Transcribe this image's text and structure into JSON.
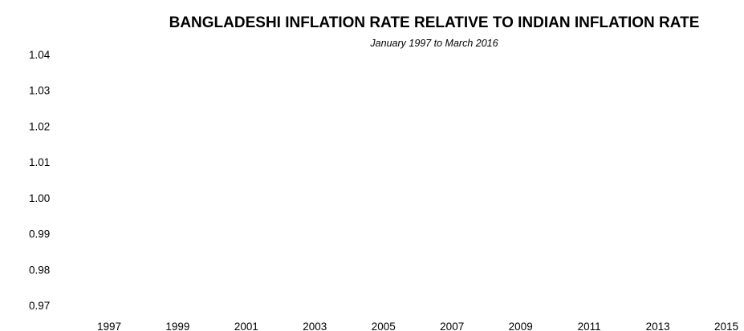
{
  "chart_data": {
    "type": "line",
    "title": "BANGLADESHI INFLATION RATE RELATIVE TO INDIAN INFLATION RATE",
    "subtitle": "January 1997 to March 2016",
    "xlabel": "",
    "ylabel": "",
    "x_ticks": [
      "1997",
      "1999",
      "2001",
      "2003",
      "2005",
      "2007",
      "2009",
      "2011",
      "2013",
      "2015"
    ],
    "y_ticks": [
      "1.04",
      "1.03",
      "1.02",
      "1.01",
      "1.00",
      "0.99",
      "0.98",
      "0.97"
    ],
    "xlim": [
      1997,
      2015
    ],
    "ylim": [
      0.97,
      1.04
    ],
    "grid": false,
    "series": []
  }
}
